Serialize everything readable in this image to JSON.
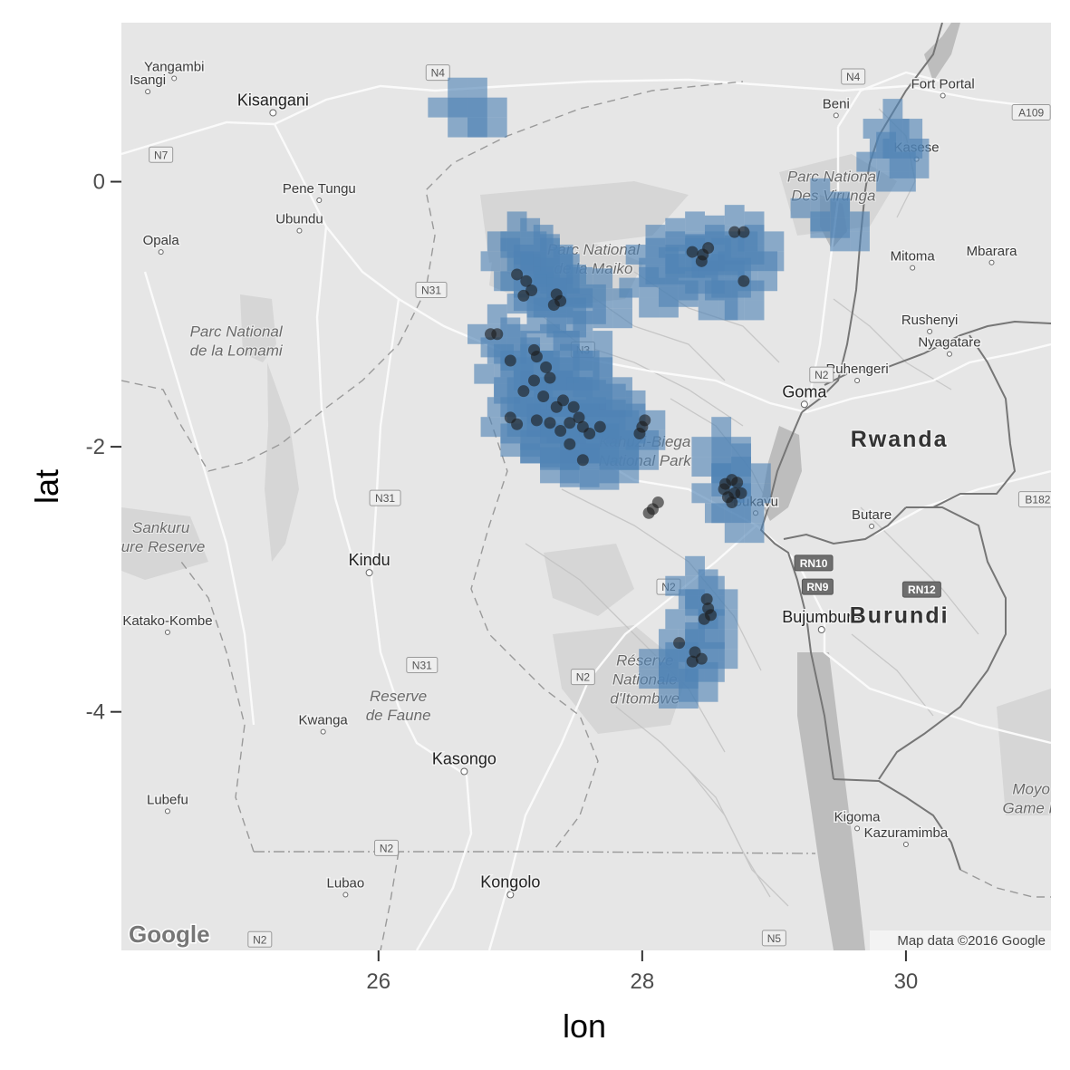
{
  "axes": {
    "x_title": "lon",
    "y_title": "lat",
    "x_ticks": [
      {
        "value": 26,
        "label": "26"
      },
      {
        "value": 28,
        "label": "28"
      },
      {
        "value": 30,
        "label": "30"
      }
    ],
    "y_ticks": [
      {
        "value": 0,
        "label": "0"
      },
      {
        "value": -2,
        "label": "-2"
      },
      {
        "value": -4,
        "label": "-4"
      }
    ],
    "xlim": [
      24.05,
      31.1
    ],
    "ylim": [
      -5.8,
      1.2
    ]
  },
  "basemap": {
    "attribution": "Map data ©2016 Google",
    "logo": "Google",
    "style": "grayscale terrain",
    "colors": {
      "land": "#e6e6e6",
      "water": "#bdbdbd",
      "road": "#fafafa",
      "border": "#767676",
      "parks": "#d4d4d4"
    },
    "places": [
      {
        "name": "Yangambi",
        "lon": 24.45,
        "lat": 0.78,
        "kind": "city",
        "dot": true
      },
      {
        "name": "Isangi",
        "lon": 24.25,
        "lat": 0.68,
        "kind": "city",
        "dot": true
      },
      {
        "name": "Kisangani",
        "lon": 25.2,
        "lat": 0.52,
        "kind": "bigcity",
        "dot": true
      },
      {
        "name": "Pene Tungu",
        "lon": 25.55,
        "lat": -0.14,
        "kind": "city",
        "dot": true
      },
      {
        "name": "Ubundu",
        "lon": 25.4,
        "lat": -0.37,
        "kind": "city",
        "dot": true
      },
      {
        "name": "Opala",
        "lon": 24.35,
        "lat": -0.53,
        "kind": "city",
        "dot": true
      },
      {
        "name": "Kindu",
        "lon": 25.93,
        "lat": -2.95,
        "kind": "bigcity",
        "dot": true
      },
      {
        "name": "Katako-Kombe",
        "lon": 24.4,
        "lat": -3.4,
        "kind": "city",
        "dot": true
      },
      {
        "name": "Kwanga",
        "lon": 25.58,
        "lat": -4.15,
        "kind": "city",
        "dot": true
      },
      {
        "name": "Kasongo",
        "lon": 26.65,
        "lat": -4.45,
        "kind": "bigcity",
        "dot": true
      },
      {
        "name": "Lubefu",
        "lon": 24.4,
        "lat": -4.75,
        "kind": "city",
        "dot": true
      },
      {
        "name": "Lubao",
        "lon": 25.75,
        "lat": -5.38,
        "kind": "city",
        "dot": true
      },
      {
        "name": "Kongolo",
        "lon": 27.0,
        "lat": -5.38,
        "kind": "bigcity",
        "dot": true
      },
      {
        "name": "Beni",
        "lon": 29.47,
        "lat": 0.5,
        "kind": "city",
        "dot": true
      },
      {
        "name": "Fort Portal",
        "lon": 30.28,
        "lat": 0.65,
        "kind": "city",
        "dot": true
      },
      {
        "name": "Kasese",
        "lon": 30.08,
        "lat": 0.17,
        "kind": "city",
        "dot": true
      },
      {
        "name": "Mitoma",
        "lon": 30.05,
        "lat": -0.65,
        "kind": "city",
        "dot": true
      },
      {
        "name": "Mbarara",
        "lon": 30.65,
        "lat": -0.61,
        "kind": "city",
        "dot": true
      },
      {
        "name": "Rushenyi",
        "lon": 30.18,
        "lat": -1.13,
        "kind": "city",
        "dot": true
      },
      {
        "name": "Nyagatare",
        "lon": 30.33,
        "lat": -1.3,
        "kind": "city",
        "dot": true
      },
      {
        "name": "Ruhengeri",
        "lon": 29.63,
        "lat": -1.5,
        "kind": "city",
        "dot": true
      },
      {
        "name": "Goma",
        "lon": 29.23,
        "lat": -1.68,
        "kind": "bigcity",
        "dot": true
      },
      {
        "name": "Bukavu",
        "lon": 28.86,
        "lat": -2.5,
        "kind": "city",
        "dot": true
      },
      {
        "name": "Butare",
        "lon": 29.74,
        "lat": -2.6,
        "kind": "city",
        "dot": true
      },
      {
        "name": "Bujumbura",
        "lon": 29.36,
        "lat": -3.38,
        "kind": "bigcity",
        "dot": true
      },
      {
        "name": "Kigoma",
        "lon": 29.63,
        "lat": -4.88,
        "kind": "city",
        "dot": true
      },
      {
        "name": "Kazuramimba",
        "lon": 30.0,
        "lat": -5.0,
        "kind": "city",
        "dot": true
      }
    ],
    "park_labels": [
      {
        "lines": [
          "Parc National",
          "de la Maiko"
        ],
        "lon": 27.63,
        "lat": -0.55
      },
      {
        "lines": [
          "Parc National",
          "de la Lomami"
        ],
        "lon": 24.92,
        "lat": -1.17
      },
      {
        "lines": [
          "Parc National",
          "Des Virunga"
        ],
        "lon": 29.45,
        "lat": 0.0
      },
      {
        "lines": [
          "Kahuzi-Biega",
          "National Park"
        ],
        "lon": 28.02,
        "lat": -2.0
      },
      {
        "lines": [
          "Sankuru",
          "ture Reserve"
        ],
        "lon": 24.35,
        "lat": -2.65
      },
      {
        "lines": [
          "Réserve",
          "Nationale",
          "d'Itombwe"
        ],
        "lon": 28.02,
        "lat": -3.65
      },
      {
        "lines": [
          "Reserve",
          "de Faune"
        ],
        "lon": 26.15,
        "lat": -3.92
      },
      {
        "lines": [
          "Moyo",
          "Game R"
        ],
        "lon": 30.95,
        "lat": -4.62
      }
    ],
    "countries": [
      {
        "name": "Rwanda",
        "lon": 29.95,
        "lat": -2.0
      },
      {
        "name": "Burundi",
        "lon": 29.95,
        "lat": -3.33
      }
    ],
    "road_shields": [
      {
        "label": "N4",
        "lon": 26.45,
        "lat": 0.82,
        "dark": false
      },
      {
        "label": "N4",
        "lon": 29.6,
        "lat": 0.79,
        "dark": false
      },
      {
        "label": "A109",
        "lon": 30.95,
        "lat": 0.52,
        "dark": false
      },
      {
        "label": "N7",
        "lon": 24.35,
        "lat": 0.2,
        "dark": false
      },
      {
        "label": "N31",
        "lon": 26.4,
        "lat": -0.82,
        "dark": false
      },
      {
        "label": "N3",
        "lon": 27.55,
        "lat": -1.27,
        "dark": false
      },
      {
        "label": "N2",
        "lon": 29.36,
        "lat": -1.46,
        "dark": false
      },
      {
        "label": "N31",
        "lon": 26.05,
        "lat": -2.39,
        "dark": false
      },
      {
        "label": "B182",
        "lon": 31.0,
        "lat": -2.4,
        "dark": false
      },
      {
        "label": "RN10",
        "lon": 29.3,
        "lat": -2.88,
        "dark": true
      },
      {
        "label": "RN9",
        "lon": 29.33,
        "lat": -3.06,
        "dark": true
      },
      {
        "label": "RN12",
        "lon": 30.12,
        "lat": -3.08,
        "dark": true
      },
      {
        "label": "N2",
        "lon": 28.2,
        "lat": -3.06,
        "dark": false
      },
      {
        "label": "N31",
        "lon": 26.33,
        "lat": -3.65,
        "dark": false
      },
      {
        "label": "N2",
        "lon": 27.55,
        "lat": -3.74,
        "dark": false
      },
      {
        "label": "N2",
        "lon": 26.06,
        "lat": -5.03,
        "dark": false
      },
      {
        "label": "N5",
        "lon": 29.0,
        "lat": -5.71,
        "dark": false
      },
      {
        "label": "N2",
        "lon": 25.1,
        "lat": -5.72,
        "dark": false
      }
    ]
  },
  "chart_data": {
    "type": "scatter",
    "title": "",
    "xlabel": "lon",
    "ylabel": "lat",
    "xlim": [
      24.05,
      31.1
    ],
    "ylim": [
      -5.8,
      1.2
    ],
    "grid": false,
    "legend": "none",
    "colors": {
      "points": "#1a1a1a",
      "raster": "#4f82b4"
    },
    "raster_cells": [
      [
        26.6,
        0.56
      ],
      [
        26.75,
        0.56
      ],
      [
        27.05,
        -0.45
      ],
      [
        27.15,
        -0.5
      ],
      [
        27.25,
        -0.55
      ],
      [
        27.0,
        -0.6
      ],
      [
        27.3,
        -0.62
      ],
      [
        27.1,
        -0.75
      ],
      [
        27.25,
        -0.8
      ],
      [
        27.4,
        -0.72
      ],
      [
        27.5,
        -0.85
      ],
      [
        27.7,
        -0.88
      ],
      [
        27.2,
        -0.92
      ],
      [
        27.35,
        -0.95
      ],
      [
        28.1,
        -0.55
      ],
      [
        28.25,
        -0.5
      ],
      [
        28.4,
        -0.45
      ],
      [
        28.55,
        -0.48
      ],
      [
        28.7,
        -0.4
      ],
      [
        28.85,
        -0.45
      ],
      [
        28.4,
        -0.62
      ],
      [
        28.6,
        -0.65
      ],
      [
        28.8,
        -0.6
      ],
      [
        28.2,
        -0.72
      ],
      [
        28.05,
        -0.8
      ],
      [
        28.5,
        -0.82
      ],
      [
        28.7,
        -0.82
      ],
      [
        26.9,
        -1.15
      ],
      [
        27.0,
        -1.25
      ],
      [
        27.15,
        -1.35
      ],
      [
        27.3,
        -1.3
      ],
      [
        27.45,
        -1.35
      ],
      [
        27.55,
        -1.2
      ],
      [
        26.95,
        -1.45
      ],
      [
        27.1,
        -1.55
      ],
      [
        27.25,
        -1.5
      ],
      [
        27.4,
        -1.55
      ],
      [
        27.55,
        -1.5
      ],
      [
        27.7,
        -1.55
      ],
      [
        27.05,
        -1.7
      ],
      [
        27.2,
        -1.7
      ],
      [
        27.35,
        -1.75
      ],
      [
        27.5,
        -1.7
      ],
      [
        27.65,
        -1.72
      ],
      [
        27.8,
        -1.75
      ],
      [
        27.95,
        -1.8
      ],
      [
        27.0,
        -1.85
      ],
      [
        27.15,
        -1.9
      ],
      [
        27.3,
        -1.95
      ],
      [
        27.45,
        -1.9
      ],
      [
        27.6,
        -1.9
      ],
      [
        27.75,
        -1.95
      ],
      [
        27.9,
        -1.95
      ],
      [
        27.3,
        -2.05
      ],
      [
        27.45,
        -2.08
      ],
      [
        27.6,
        -2.1
      ],
      [
        27.75,
        -2.05
      ],
      [
        28.6,
        -2.0
      ],
      [
        28.6,
        -2.15
      ],
      [
        28.75,
        -2.2
      ],
      [
        28.6,
        -2.35
      ],
      [
        28.7,
        -2.5
      ],
      [
        28.4,
        -3.05
      ],
      [
        28.5,
        -3.15
      ],
      [
        28.4,
        -3.3
      ],
      [
        28.5,
        -3.45
      ],
      [
        28.4,
        -3.55
      ],
      [
        28.35,
        -3.7
      ],
      [
        28.2,
        -3.6
      ],
      [
        28.2,
        -3.75
      ],
      [
        29.9,
        0.4
      ],
      [
        29.95,
        0.25
      ],
      [
        29.85,
        0.15
      ],
      [
        29.35,
        -0.2
      ],
      [
        29.5,
        -0.3
      ]
    ],
    "points": [
      {
        "lon": 27.05,
        "lat": -0.7
      },
      {
        "lon": 27.12,
        "lat": -0.75
      },
      {
        "lon": 27.16,
        "lat": -0.82
      },
      {
        "lon": 27.1,
        "lat": -0.86
      },
      {
        "lon": 27.35,
        "lat": -0.85
      },
      {
        "lon": 27.38,
        "lat": -0.9
      },
      {
        "lon": 27.33,
        "lat": -0.93
      },
      {
        "lon": 28.38,
        "lat": -0.53
      },
      {
        "lon": 28.46,
        "lat": -0.55
      },
      {
        "lon": 28.5,
        "lat": -0.5
      },
      {
        "lon": 28.45,
        "lat": -0.6
      },
      {
        "lon": 28.7,
        "lat": -0.38
      },
      {
        "lon": 28.77,
        "lat": -0.38
      },
      {
        "lon": 28.77,
        "lat": -0.75
      },
      {
        "lon": 26.85,
        "lat": -1.15
      },
      {
        "lon": 26.9,
        "lat": -1.15
      },
      {
        "lon": 27.18,
        "lat": -1.27
      },
      {
        "lon": 27.2,
        "lat": -1.32
      },
      {
        "lon": 27.27,
        "lat": -1.4
      },
      {
        "lon": 27.3,
        "lat": -1.48
      },
      {
        "lon": 27.18,
        "lat": -1.5
      },
      {
        "lon": 27.1,
        "lat": -1.58
      },
      {
        "lon": 27.0,
        "lat": -1.35
      },
      {
        "lon": 27.25,
        "lat": -1.62
      },
      {
        "lon": 27.35,
        "lat": -1.7
      },
      {
        "lon": 27.4,
        "lat": -1.65
      },
      {
        "lon": 27.48,
        "lat": -1.7
      },
      {
        "lon": 27.52,
        "lat": -1.78
      },
      {
        "lon": 27.45,
        "lat": -1.82
      },
      {
        "lon": 27.38,
        "lat": -1.88
      },
      {
        "lon": 27.55,
        "lat": -1.85
      },
      {
        "lon": 27.6,
        "lat": -1.9
      },
      {
        "lon": 27.68,
        "lat": -1.85
      },
      {
        "lon": 27.2,
        "lat": -1.8
      },
      {
        "lon": 27.3,
        "lat": -1.82
      },
      {
        "lon": 27.0,
        "lat": -1.78
      },
      {
        "lon": 27.05,
        "lat": -1.83
      },
      {
        "lon": 27.45,
        "lat": -1.98
      },
      {
        "lon": 27.55,
        "lat": -2.1
      },
      {
        "lon": 28.0,
        "lat": -1.85
      },
      {
        "lon": 28.02,
        "lat": -1.8
      },
      {
        "lon": 27.98,
        "lat": -1.9
      },
      {
        "lon": 28.63,
        "lat": -2.28
      },
      {
        "lon": 28.68,
        "lat": -2.25
      },
      {
        "lon": 28.72,
        "lat": -2.27
      },
      {
        "lon": 28.7,
        "lat": -2.35
      },
      {
        "lon": 28.65,
        "lat": -2.38
      },
      {
        "lon": 28.75,
        "lat": -2.35
      },
      {
        "lon": 28.68,
        "lat": -2.42
      },
      {
        "lon": 28.62,
        "lat": -2.32
      },
      {
        "lon": 28.12,
        "lat": -2.42
      },
      {
        "lon": 28.08,
        "lat": -2.47
      },
      {
        "lon": 28.05,
        "lat": -2.5
      },
      {
        "lon": 28.49,
        "lat": -3.15
      },
      {
        "lon": 28.5,
        "lat": -3.22
      },
      {
        "lon": 28.47,
        "lat": -3.3
      },
      {
        "lon": 28.52,
        "lat": -3.27
      },
      {
        "lon": 28.28,
        "lat": -3.48
      },
      {
        "lon": 28.4,
        "lat": -3.55
      },
      {
        "lon": 28.45,
        "lat": -3.6
      },
      {
        "lon": 28.38,
        "lat": -3.62
      }
    ]
  }
}
